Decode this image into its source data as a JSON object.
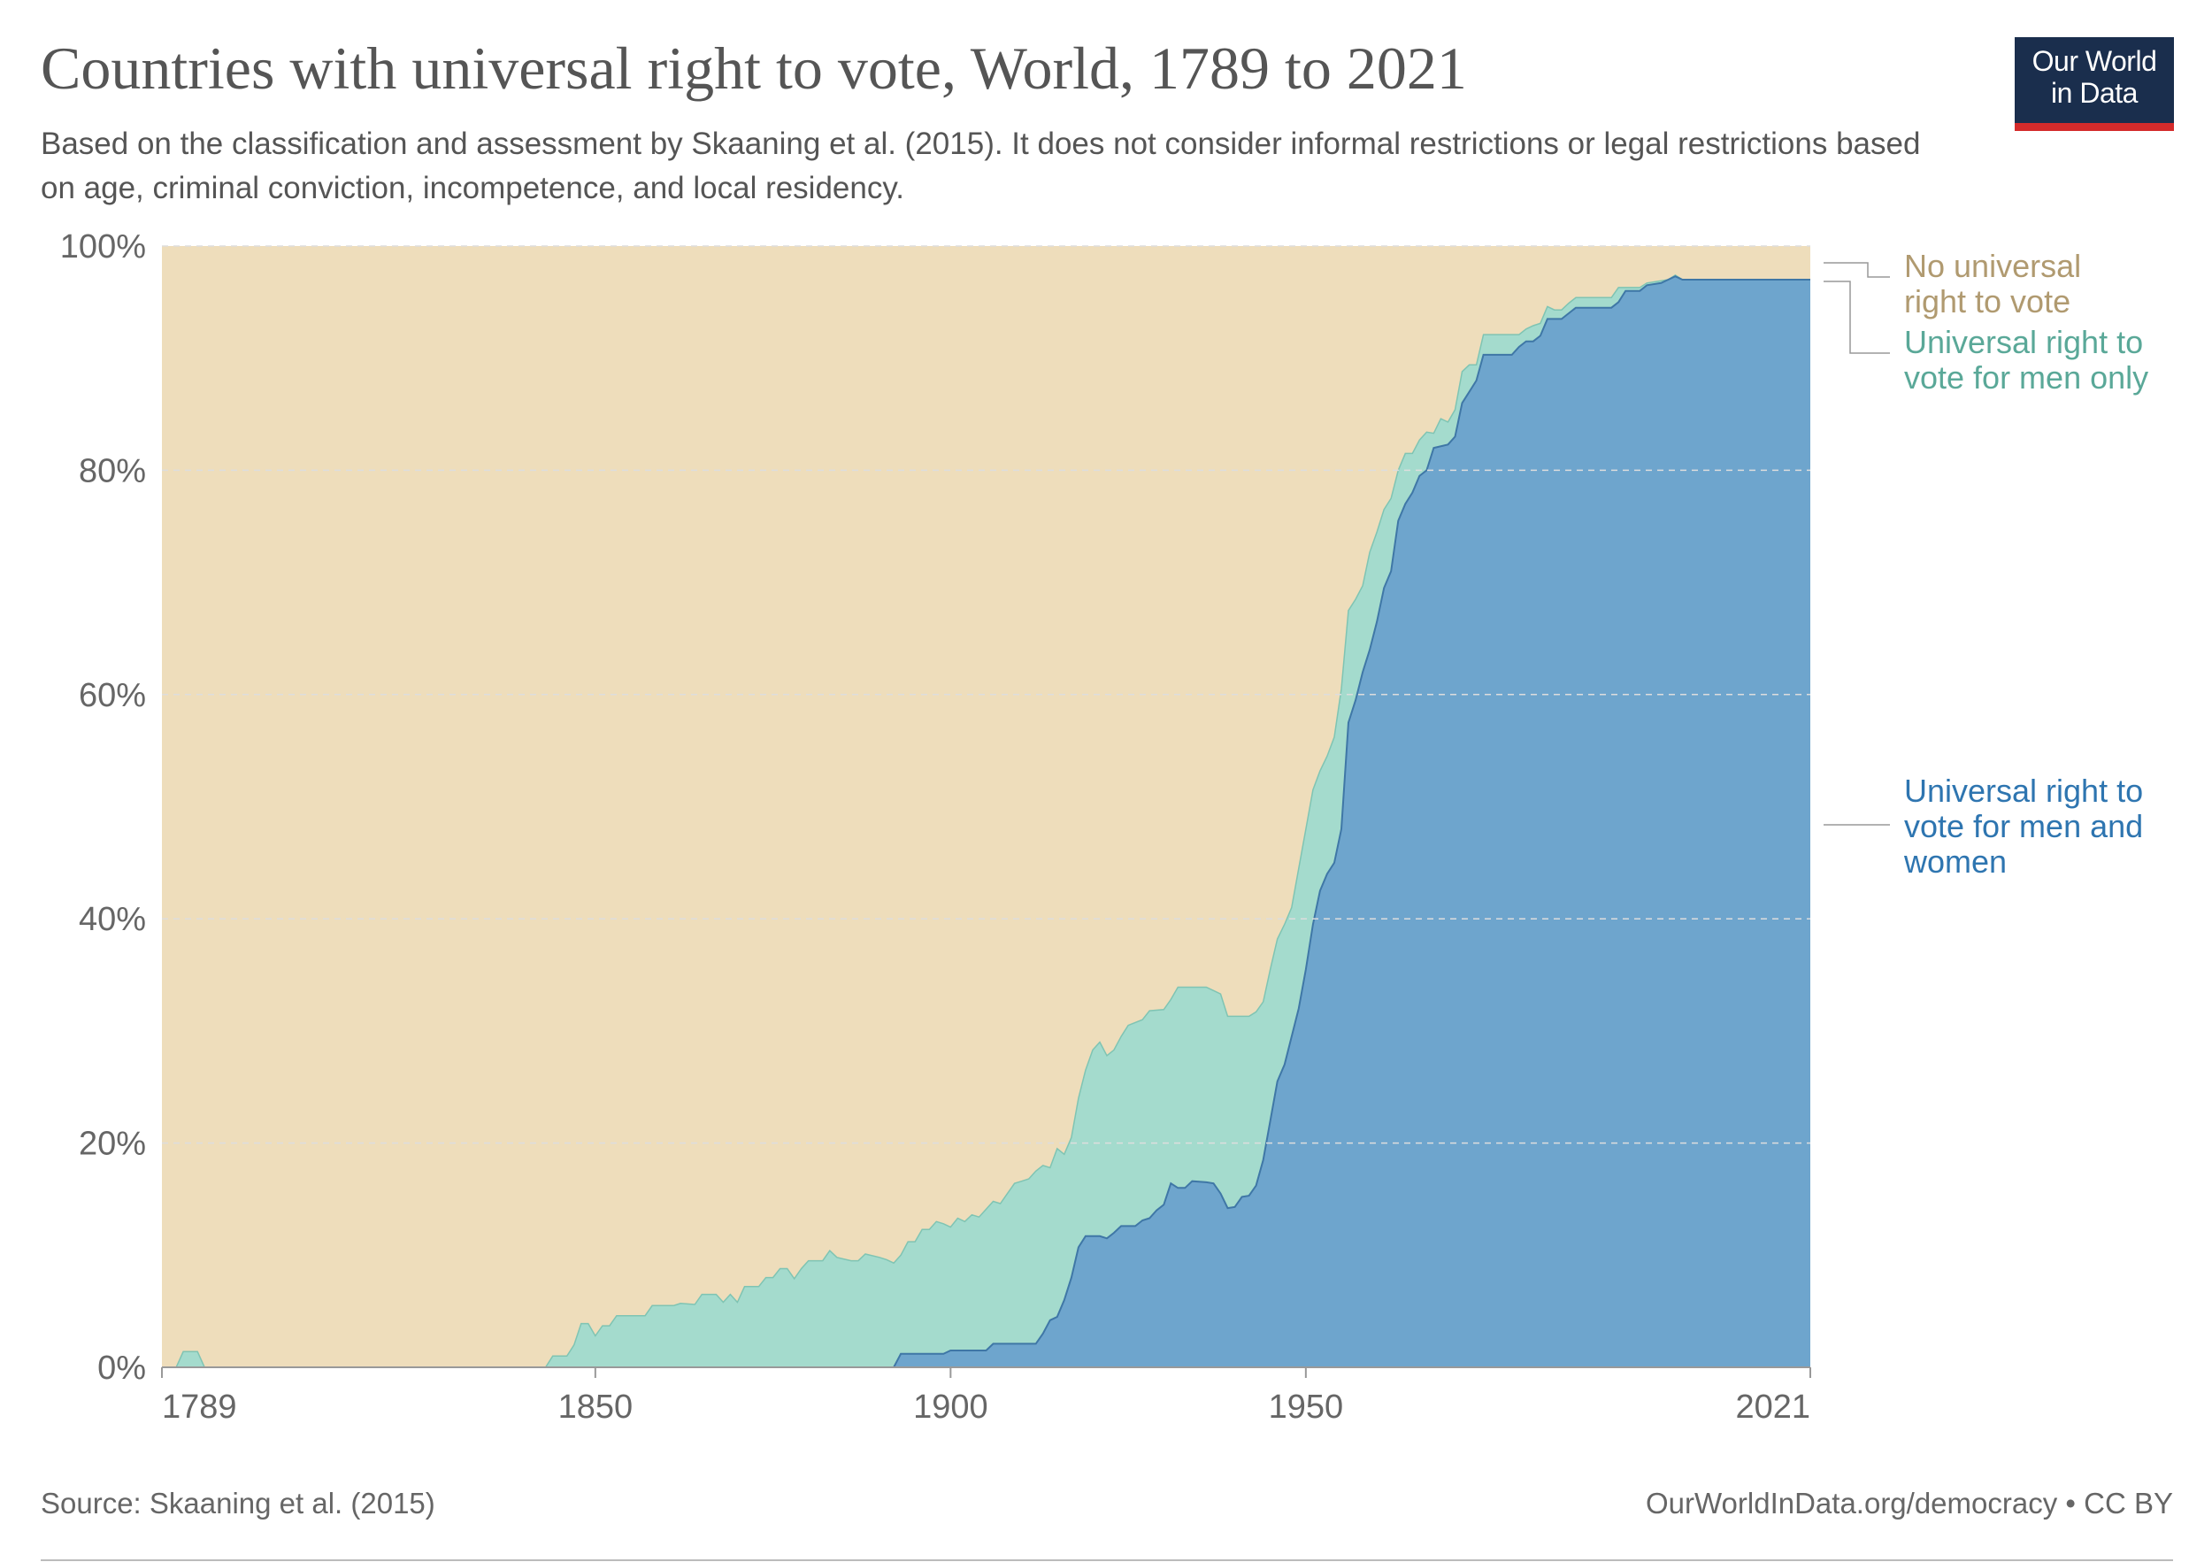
{
  "header": {
    "title": "Countries with universal right to vote, World, 1789 to 2021",
    "subtitle": "Based on the classification and assessment by Skaaning et al. (2015). It does not consider informal restrictions or legal restrictions based on age, criminal conviction, incompetence, and local residency.",
    "logo_line1": "Our World",
    "logo_line2": "in Data"
  },
  "footer": {
    "source": "Source: Skaaning et al. (2015)",
    "url": "OurWorldInData.org/democracy",
    "separator": "•",
    "license": "CC BY"
  },
  "colors": {
    "none": "#eeddbb",
    "men_only": "#a4dbcd",
    "men_and_women": "#6ea5cd",
    "men_and_women_edge": "#3f77a6",
    "men_only_edge": "#7fc4b3",
    "label_none": "#b09a70",
    "label_men_only": "#5aa898",
    "label_men_and_women": "#2e75b0",
    "axis": "#999999",
    "grid": "#dddddd"
  },
  "chart_data": {
    "type": "area",
    "stacked": true,
    "stacking": "percent",
    "title": "Countries with universal right to vote, World, 1789 to 2021",
    "x_range": [
      1789,
      2021
    ],
    "ylim": [
      0,
      100
    ],
    "x_ticks": [
      1789,
      1850,
      1900,
      1950,
      2021
    ],
    "y_ticks": [
      {
        "value": 0,
        "label": "0%"
      },
      {
        "value": 20,
        "label": "20%"
      },
      {
        "value": 40,
        "label": "40%"
      },
      {
        "value": 60,
        "label": "60%"
      },
      {
        "value": 80,
        "label": "80%"
      },
      {
        "value": 100,
        "label": "100%"
      }
    ],
    "legend_position": "right",
    "legend": [
      {
        "key": "no_universal",
        "lines": [
          "No universal",
          "right to vote"
        ]
      },
      {
        "key": "men_only",
        "lines": [
          "Universal right to",
          "vote for men only"
        ]
      },
      {
        "key": "men_and_women",
        "lines": [
          "Universal right to",
          "vote for men and",
          "women"
        ]
      }
    ],
    "series": [
      {
        "name": "Universal right to vote for men and women",
        "key": "men_and_women",
        "points": [
          [
            1789,
            0
          ],
          [
            1892,
            0
          ],
          [
            1893,
            1.2
          ],
          [
            1899,
            1.2
          ],
          [
            1900,
            1.5
          ],
          [
            1905,
            1.5
          ],
          [
            1906,
            2.1
          ],
          [
            1912,
            2.1
          ],
          [
            1913,
            3.0
          ],
          [
            1914,
            4.2
          ],
          [
            1915,
            4.5
          ],
          [
            1916,
            6.0
          ],
          [
            1917,
            8.0
          ],
          [
            1918,
            10.7
          ],
          [
            1919,
            11.7
          ],
          [
            1921,
            11.7
          ],
          [
            1922,
            11.5
          ],
          [
            1923,
            12.0
          ],
          [
            1924,
            12.6
          ],
          [
            1926,
            12.6
          ],
          [
            1927,
            13.1
          ],
          [
            1928,
            13.3
          ],
          [
            1929,
            14.0
          ],
          [
            1930,
            14.5
          ],
          [
            1931,
            16.4
          ],
          [
            1932,
            16.0
          ],
          [
            1933,
            16.0
          ],
          [
            1934,
            16.6
          ],
          [
            1936,
            16.5
          ],
          [
            1937,
            16.4
          ],
          [
            1938,
            15.5
          ],
          [
            1939,
            14.2
          ],
          [
            1940,
            14.3
          ],
          [
            1941,
            15.2
          ],
          [
            1942,
            15.3
          ],
          [
            1943,
            16.2
          ],
          [
            1944,
            18.5
          ],
          [
            1945,
            22.0
          ],
          [
            1946,
            25.5
          ],
          [
            1947,
            27.0
          ],
          [
            1948,
            29.5
          ],
          [
            1949,
            32.0
          ],
          [
            1950,
            35.5
          ],
          [
            1951,
            39.5
          ],
          [
            1952,
            42.5
          ],
          [
            1953,
            44.0
          ],
          [
            1954,
            45.0
          ],
          [
            1955,
            48.0
          ],
          [
            1956,
            57.5
          ],
          [
            1957,
            59.5
          ],
          [
            1958,
            62.0
          ],
          [
            1959,
            64.0
          ],
          [
            1960,
            66.5
          ],
          [
            1961,
            69.5
          ],
          [
            1962,
            71.0
          ],
          [
            1963,
            75.5
          ],
          [
            1964,
            77.0
          ],
          [
            1965,
            78.0
          ],
          [
            1966,
            79.5
          ],
          [
            1967,
            80.0
          ],
          [
            1968,
            82.0
          ],
          [
            1970,
            82.3
          ],
          [
            1971,
            83.0
          ],
          [
            1972,
            86.0
          ],
          [
            1973,
            87.0
          ],
          [
            1974,
            88.0
          ],
          [
            1975,
            90.3
          ],
          [
            1979,
            90.3
          ],
          [
            1980,
            91.0
          ],
          [
            1981,
            91.5
          ],
          [
            1982,
            91.5
          ],
          [
            1983,
            92.0
          ],
          [
            1984,
            93.5
          ],
          [
            1986,
            93.5
          ],
          [
            1987,
            94.0
          ],
          [
            1988,
            94.5
          ],
          [
            1993,
            94.5
          ],
          [
            1994,
            95.0
          ],
          [
            1995,
            96.0
          ],
          [
            1997,
            96.0
          ],
          [
            1998,
            96.5
          ],
          [
            2000,
            96.7
          ],
          [
            2001,
            97.0
          ],
          [
            2002,
            97.3
          ],
          [
            2003,
            97.0
          ],
          [
            2021,
            97.0
          ]
        ]
      },
      {
        "name": "Universal right to vote for men only",
        "key": "men_only",
        "points": [
          [
            1789,
            0
          ],
          [
            1791,
            0
          ],
          [
            1792,
            1.4
          ],
          [
            1794,
            1.4
          ],
          [
            1795,
            0
          ],
          [
            1843,
            0
          ],
          [
            1844,
            1.0
          ],
          [
            1846,
            1.0
          ],
          [
            1847,
            2.0
          ],
          [
            1848,
            3.9
          ],
          [
            1849,
            3.9
          ],
          [
            1850,
            2.8
          ],
          [
            1851,
            3.7
          ],
          [
            1852,
            3.7
          ],
          [
            1853,
            4.6
          ],
          [
            1857,
            4.6
          ],
          [
            1858,
            5.5
          ],
          [
            1861,
            5.5
          ],
          [
            1862,
            5.7
          ],
          [
            1864,
            5.6
          ],
          [
            1865,
            6.5
          ],
          [
            1867,
            6.5
          ],
          [
            1868,
            5.8
          ],
          [
            1869,
            6.5
          ],
          [
            1870,
            5.8
          ],
          [
            1871,
            7.2
          ],
          [
            1873,
            7.2
          ],
          [
            1874,
            8.0
          ],
          [
            1875,
            8.0
          ],
          [
            1876,
            8.8
          ],
          [
            1877,
            8.8
          ],
          [
            1878,
            7.9
          ],
          [
            1879,
            8.8
          ],
          [
            1880,
            9.5
          ],
          [
            1882,
            9.5
          ],
          [
            1883,
            10.4
          ],
          [
            1884,
            9.8
          ],
          [
            1886,
            9.5
          ],
          [
            1887,
            9.5
          ],
          [
            1888,
            10.1
          ],
          [
            1890,
            9.8
          ],
          [
            1891,
            9.6
          ],
          [
            1892,
            9.3
          ],
          [
            1893,
            10.0
          ],
          [
            1894,
            11.2
          ],
          [
            1895,
            11.2
          ],
          [
            1896,
            12.3
          ],
          [
            1897,
            12.3
          ],
          [
            1898,
            13.0
          ],
          [
            1899,
            12.8
          ],
          [
            1900,
            12.5
          ],
          [
            1901,
            13.3
          ],
          [
            1902,
            13.0
          ],
          [
            1903,
            13.6
          ],
          [
            1904,
            13.4
          ],
          [
            1905,
            14.1
          ],
          [
            1906,
            14.8
          ],
          [
            1907,
            14.6
          ],
          [
            1908,
            15.5
          ],
          [
            1909,
            16.4
          ],
          [
            1910,
            16.6
          ],
          [
            1911,
            16.8
          ],
          [
            1912,
            17.5
          ],
          [
            1913,
            18.0
          ],
          [
            1914,
            17.8
          ],
          [
            1915,
            19.5
          ],
          [
            1916,
            19.0
          ],
          [
            1917,
            20.5
          ],
          [
            1918,
            24.0
          ],
          [
            1919,
            26.5
          ],
          [
            1920,
            28.3
          ],
          [
            1921,
            29.0
          ],
          [
            1922,
            27.8
          ],
          [
            1923,
            28.3
          ],
          [
            1924,
            29.5
          ],
          [
            1925,
            30.5
          ],
          [
            1927,
            31.0
          ],
          [
            1928,
            31.8
          ],
          [
            1930,
            31.9
          ],
          [
            1931,
            32.8
          ],
          [
            1932,
            33.9
          ],
          [
            1936,
            33.9
          ],
          [
            1937,
            33.6
          ],
          [
            1938,
            33.3
          ],
          [
            1939,
            31.3
          ],
          [
            1942,
            31.3
          ],
          [
            1943,
            31.7
          ],
          [
            1944,
            32.6
          ],
          [
            1945,
            35.5
          ],
          [
            1946,
            38.2
          ],
          [
            1947,
            39.5
          ],
          [
            1948,
            41.0
          ],
          [
            1949,
            44.5
          ],
          [
            1950,
            48.0
          ],
          [
            1951,
            51.5
          ],
          [
            1952,
            53.2
          ],
          [
            1953,
            54.5
          ],
          [
            1954,
            56.2
          ],
          [
            1955,
            60.5
          ],
          [
            1956,
            67.5
          ],
          [
            1957,
            68.5
          ],
          [
            1958,
            69.7
          ],
          [
            1959,
            72.7
          ],
          [
            1960,
            74.5
          ],
          [
            1961,
            76.5
          ],
          [
            1962,
            77.5
          ],
          [
            1963,
            80.0
          ],
          [
            1964,
            81.5
          ],
          [
            1965,
            81.5
          ],
          [
            1966,
            82.7
          ],
          [
            1967,
            83.4
          ],
          [
            1968,
            83.3
          ],
          [
            1969,
            84.6
          ],
          [
            1970,
            84.3
          ],
          [
            1971,
            85.4
          ],
          [
            1972,
            88.8
          ],
          [
            1973,
            89.4
          ],
          [
            1974,
            89.4
          ],
          [
            1975,
            92.1
          ],
          [
            1980,
            92.1
          ],
          [
            1981,
            92.6
          ],
          [
            1982,
            92.9
          ],
          [
            1983,
            93.1
          ],
          [
            1984,
            94.6
          ],
          [
            1985,
            94.3
          ],
          [
            1986,
            94.3
          ],
          [
            1987,
            94.9
          ],
          [
            1988,
            95.4
          ],
          [
            1993,
            95.4
          ],
          [
            1994,
            96.3
          ],
          [
            1997,
            96.3
          ],
          [
            1998,
            96.7
          ],
          [
            2000,
            96.9
          ],
          [
            2001,
            97.0
          ],
          [
            2002,
            97.4
          ],
          [
            2003,
            97.0
          ],
          [
            2021,
            97.0
          ]
        ]
      },
      {
        "name": "No universal right to vote",
        "key": "no_universal",
        "points": [
          [
            1789,
            100
          ],
          [
            2021,
            100
          ]
        ]
      }
    ]
  }
}
